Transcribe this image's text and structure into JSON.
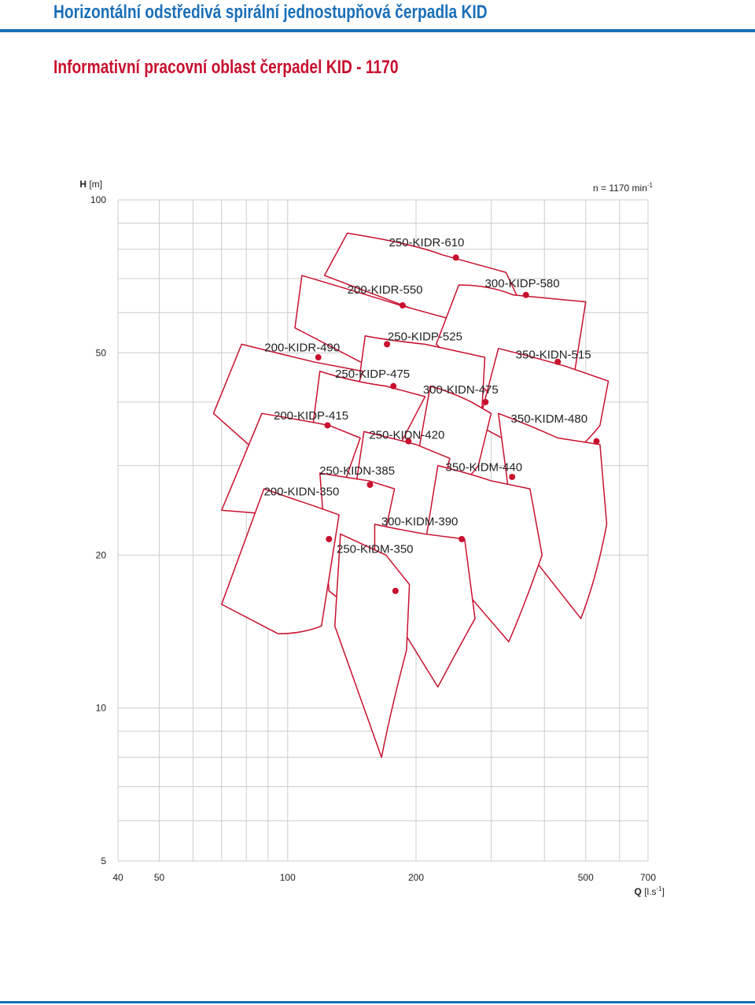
{
  "header": {
    "title": "Horizontální odstředivá spirální jednostupňová čerpadla KID",
    "subtitle": "Informativní pracovní oblast čerpadel KID - 1170"
  },
  "colors": {
    "title": "#1a6fb8",
    "curve": "#c8102e",
    "grid": "#cccccc"
  },
  "chart_data": {
    "type": "area",
    "scale": "log-log",
    "grid": true,
    "x": {
      "label_symbol": "Q",
      "label_unit": "[l.s",
      "label_sup": "-1",
      "label_end": "]",
      "ticks": [
        40,
        50,
        100,
        200,
        500,
        700
      ],
      "range": [
        40,
        700
      ]
    },
    "y": {
      "label_symbol": "H",
      "label_unit": "[m]",
      "ticks": [
        5,
        10,
        20,
        50,
        100
      ],
      "range": [
        5,
        100
      ]
    },
    "speed_note": {
      "text": "n = 1170 min",
      "sup": "-1"
    },
    "pumps": [
      {
        "name": "250-KIDR-610",
        "region": [
          [
            138,
            86
          ],
          [
            197,
            82
          ],
          [
            230,
            78
          ],
          [
            325,
            72
          ],
          [
            374,
            56
          ],
          [
            332,
            51
          ],
          [
            230,
            58
          ],
          [
            122,
            71
          ]
        ],
        "marker": [
          248,
          77
        ]
      },
      {
        "name": "200-KIDR-550",
        "region": [
          [
            108,
            71
          ],
          [
            145,
            66
          ],
          [
            184,
            62
          ],
          [
            265,
            57
          ],
          [
            240,
            44
          ],
          [
            200,
            45
          ],
          [
            148,
            48
          ],
          [
            104,
            56
          ]
        ],
        "marker": [
          186,
          62
        ]
      },
      {
        "name": "300-KIDP-580",
        "region": [
          [
            252,
            68
          ],
          [
            297,
            68
          ],
          [
            338,
            65
          ],
          [
            500,
            63
          ],
          [
            450,
            36
          ],
          [
            425,
            34
          ],
          [
            358,
            36
          ],
          [
            223,
            52
          ]
        ],
        "marker": [
          362,
          65
        ]
      },
      {
        "name": "250-KIDP-525",
        "region": [
          [
            152,
            54
          ],
          [
            170,
            53
          ],
          [
            210,
            52
          ],
          [
            290,
            49
          ],
          [
            283,
            34
          ],
          [
            255,
            32
          ],
          [
            180,
            33
          ],
          [
            144,
            39
          ]
        ],
        "marker": [
          171,
          52
        ]
      },
      {
        "name": "200-KIDR-490",
        "region": [
          [
            78,
            52
          ],
          [
            94,
            50
          ],
          [
            115,
            48
          ],
          [
            150,
            46
          ],
          [
            130,
            32
          ],
          [
            115,
            30
          ],
          [
            92,
            30
          ],
          [
            67,
            38
          ]
        ],
        "marker": [
          118,
          49
        ]
      },
      {
        "name": "350-KIDN-515",
        "region": [
          [
            312,
            51
          ],
          [
            380,
            49
          ],
          [
            450,
            47
          ],
          [
            565,
            44
          ],
          [
            540,
            36
          ],
          [
            485,
            32
          ],
          [
            420,
            30
          ],
          [
            280,
            36
          ]
        ],
        "marker": [
          430,
          48
        ]
      },
      {
        "name": "250-KIDP-475",
        "region": [
          [
            119,
            46
          ],
          [
            140,
            44
          ],
          [
            170,
            43
          ],
          [
            210,
            41
          ],
          [
            180,
            32
          ],
          [
            160,
            28
          ],
          [
            130,
            27
          ],
          [
            112,
            31
          ]
        ],
        "marker": [
          177,
          43
        ]
      },
      {
        "name": "300-KIDN-475",
        "region": [
          [
            216,
            43
          ],
          [
            240,
            42
          ],
          [
            270,
            40
          ],
          [
            300,
            38
          ],
          [
            280,
            30
          ],
          [
            255,
            27
          ],
          [
            230,
            26
          ],
          [
            200,
            30
          ]
        ],
        "marker": [
          291,
          40
        ]
      },
      {
        "name": "200-KIDP-415",
        "region": [
          [
            87,
            38
          ],
          [
            105,
            37
          ],
          [
            125,
            36
          ],
          [
            148,
            34
          ],
          [
            130,
            25
          ],
          [
            115,
            24
          ],
          [
            95,
            24
          ],
          [
            70,
            24.5
          ]
        ],
        "marker": [
          124,
          36
        ]
      },
      {
        "name": "250-KIDN-420",
        "region": [
          [
            151,
            35
          ],
          [
            175,
            34
          ],
          [
            200,
            33
          ],
          [
            240,
            31
          ],
          [
            215,
            21
          ],
          [
            195,
            19.5
          ],
          [
            165,
            20
          ],
          [
            140,
            23
          ]
        ],
        "marker": [
          192,
          33.5
        ]
      },
      {
        "name": "350-KIDM-480",
        "region": [
          [
            312,
            38
          ],
          [
            370,
            36
          ],
          [
            430,
            34
          ],
          [
            540,
            33
          ],
          [
            560,
            23
          ],
          [
            530,
            18
          ],
          [
            487,
            15
          ],
          [
            340,
            22
          ]
        ],
        "marker": [
          530,
          33.5
        ]
      },
      {
        "name": "250-KIDN-385",
        "region": [
          [
            119,
            29
          ],
          [
            135,
            28.5
          ],
          [
            155,
            28
          ],
          [
            178,
            27
          ],
          [
            165,
            20
          ],
          [
            150,
            17
          ],
          [
            137,
            16
          ],
          [
            125,
            17
          ]
        ],
        "marker": [
          156,
          27.5
        ]
      },
      {
        "name": "350-KIDM-440",
        "region": [
          [
            225,
            30
          ],
          [
            265,
            29
          ],
          [
            300,
            28
          ],
          [
            370,
            27
          ],
          [
            395,
            20
          ],
          [
            360,
            16
          ],
          [
            330,
            13.5
          ],
          [
            210,
            21
          ]
        ],
        "marker": [
          336,
          28.5
        ]
      },
      {
        "name": "200-KIDN-350",
        "region": [
          [
            88,
            27
          ],
          [
            100,
            26
          ],
          [
            115,
            25
          ],
          [
            132,
            24
          ],
          [
            120,
            14.5
          ],
          [
            108,
            14
          ],
          [
            95,
            14
          ],
          [
            70,
            16
          ]
        ],
        "marker": [
          125,
          21.5
        ]
      },
      {
        "name": "300-KIDM-390",
        "region": [
          [
            160,
            23
          ],
          [
            180,
            22.5
          ],
          [
            210,
            22
          ],
          [
            260,
            21.5
          ],
          [
            275,
            15
          ],
          [
            250,
            13
          ],
          [
            225,
            11
          ],
          [
            160,
            17.5
          ]
        ],
        "marker": [
          256,
          21.5
        ]
      },
      {
        "name": "250-KIDM-350",
        "region": [
          [
            133,
            22
          ],
          [
            150,
            21
          ],
          [
            170,
            20
          ],
          [
            193,
            17.5
          ],
          [
            190,
            13
          ],
          [
            175,
            10
          ],
          [
            166,
            8
          ],
          [
            129,
            14.5
          ]
        ],
        "marker": [
          179,
          17
        ]
      }
    ]
  }
}
